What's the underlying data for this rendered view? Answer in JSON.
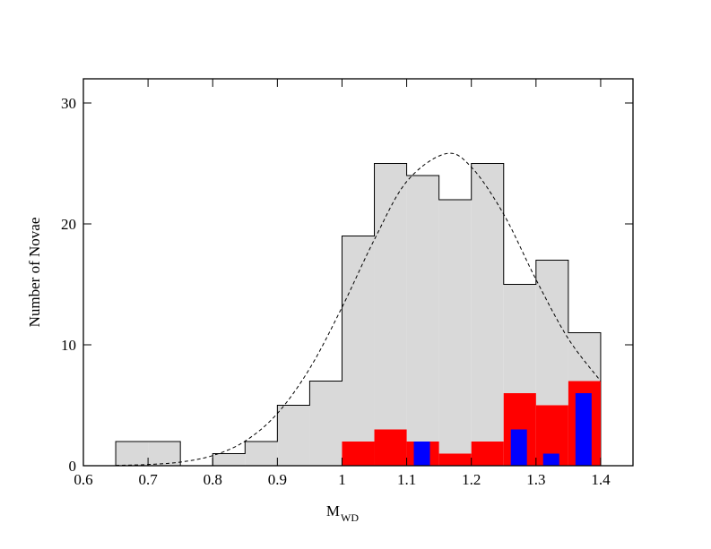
{
  "chart_data": {
    "type": "histogram",
    "xlabel": "M",
    "xlabel_subscript": "WD",
    "ylabel": "Number of Novae",
    "xlim": [
      0.6,
      1.45
    ],
    "ylim": [
      0,
      32
    ],
    "xticks": [
      0.6,
      0.7,
      0.8,
      0.9,
      1,
      1.1,
      1.2,
      1.3,
      1.4
    ],
    "yticks": [
      0,
      10,
      20,
      30
    ],
    "histograms": [
      {
        "color": "#d9d9d9",
        "edge_color": "#000000",
        "bins": [
          0.65,
          0.7,
          0.75,
          0.8,
          0.85,
          0.9,
          0.95,
          1.0,
          1.05,
          1.1,
          1.15,
          1.2,
          1.25,
          1.3,
          1.35,
          1.4
        ],
        "values": [
          2,
          2,
          0,
          1,
          2,
          5,
          7,
          19,
          25,
          24,
          22,
          25,
          15,
          17,
          11
        ]
      },
      {
        "color": "#ff0000",
        "bins": [
          1.0,
          1.05,
          1.1,
          1.15,
          1.2,
          1.25,
          1.3,
          1.35,
          1.4
        ],
        "values": [
          2,
          3,
          2,
          1,
          2,
          6,
          5,
          7
        ]
      }
    ],
    "bars": {
      "color": "#0000ff",
      "x": [
        1.1235,
        1.2735,
        1.3235,
        1.3735
      ],
      "values": [
        2,
        3,
        1,
        6
      ]
    },
    "curve": {
      "color": "#000000",
      "x": [
        0.65,
        0.7,
        0.75,
        0.8,
        0.85,
        0.9,
        0.95,
        1.0,
        1.05,
        1.1,
        1.16,
        1.2,
        1.25,
        1.3,
        1.35,
        1.4
      ],
      "values": [
        0.03,
        0.1,
        0.3,
        0.84,
        2.03,
        4.32,
        8.04,
        13.1,
        18.7,
        23.5,
        25.8,
        24.7,
        20.8,
        15.4,
        10.5,
        7
      ]
    }
  }
}
